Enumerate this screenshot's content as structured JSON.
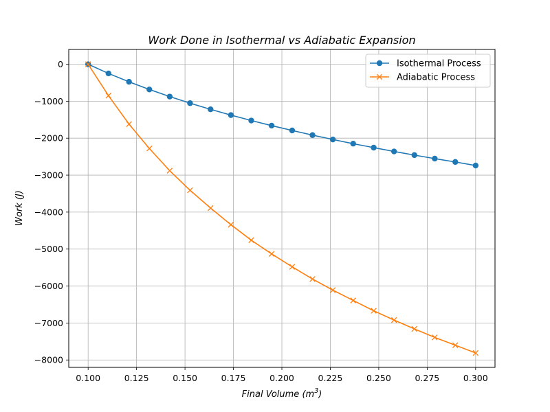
{
  "chart_data": {
    "type": "line",
    "title": "Work Done in Isothermal vs Adiabatic Expansion",
    "xlabel_main": "Final Volume (m",
    "xlabel_sup": "3",
    "xlabel_close": ")",
    "ylabel": "Work (J)",
    "xlim": [
      0.09,
      0.31
    ],
    "ylim": [
      -8200,
      400
    ],
    "grid": true,
    "legend_position": "top-right",
    "x_ticks": [
      0.1,
      0.125,
      0.15,
      0.175,
      0.2,
      0.225,
      0.25,
      0.275,
      0.3
    ],
    "x_tick_labels": [
      "0.100",
      "0.125",
      "0.150",
      "0.175",
      "0.200",
      "0.225",
      "0.250",
      "0.275",
      "0.300"
    ],
    "y_ticks": [
      0,
      -1000,
      -2000,
      -3000,
      -4000,
      -5000,
      -6000,
      -7000,
      -8000
    ],
    "y_tick_labels": [
      "0",
      "−1000",
      "−2000",
      "−3000",
      "−4000",
      "−5000",
      "−6000",
      "−7000",
      "−8000"
    ],
    "x": [
      0.1,
      0.1105,
      0.1211,
      0.1316,
      0.1421,
      0.1526,
      0.1632,
      0.1737,
      0.1842,
      0.1947,
      0.2053,
      0.2158,
      0.2263,
      0.2368,
      0.2474,
      0.2579,
      0.2684,
      0.2789,
      0.2895,
      0.3
    ],
    "series": [
      {
        "name": "Isothermal Process",
        "color": "#1f77b4",
        "marker": "circle",
        "values": [
          0,
          -249,
          -475,
          -683,
          -875,
          -1053,
          -1220,
          -1376,
          -1523,
          -1661,
          -1792,
          -1917,
          -2036,
          -2149,
          -2256,
          -2360,
          -2458,
          -2553,
          -2644,
          -2740
        ]
      },
      {
        "name": "Adiabatic Process",
        "color": "#ff7f0e",
        "marker": "x",
        "values": [
          0,
          -850,
          -1620,
          -2280,
          -2880,
          -3410,
          -3890,
          -4340,
          -4760,
          -5130,
          -5480,
          -5810,
          -6110,
          -6390,
          -6670,
          -6920,
          -7160,
          -7390,
          -7600,
          -7810
        ]
      }
    ]
  }
}
